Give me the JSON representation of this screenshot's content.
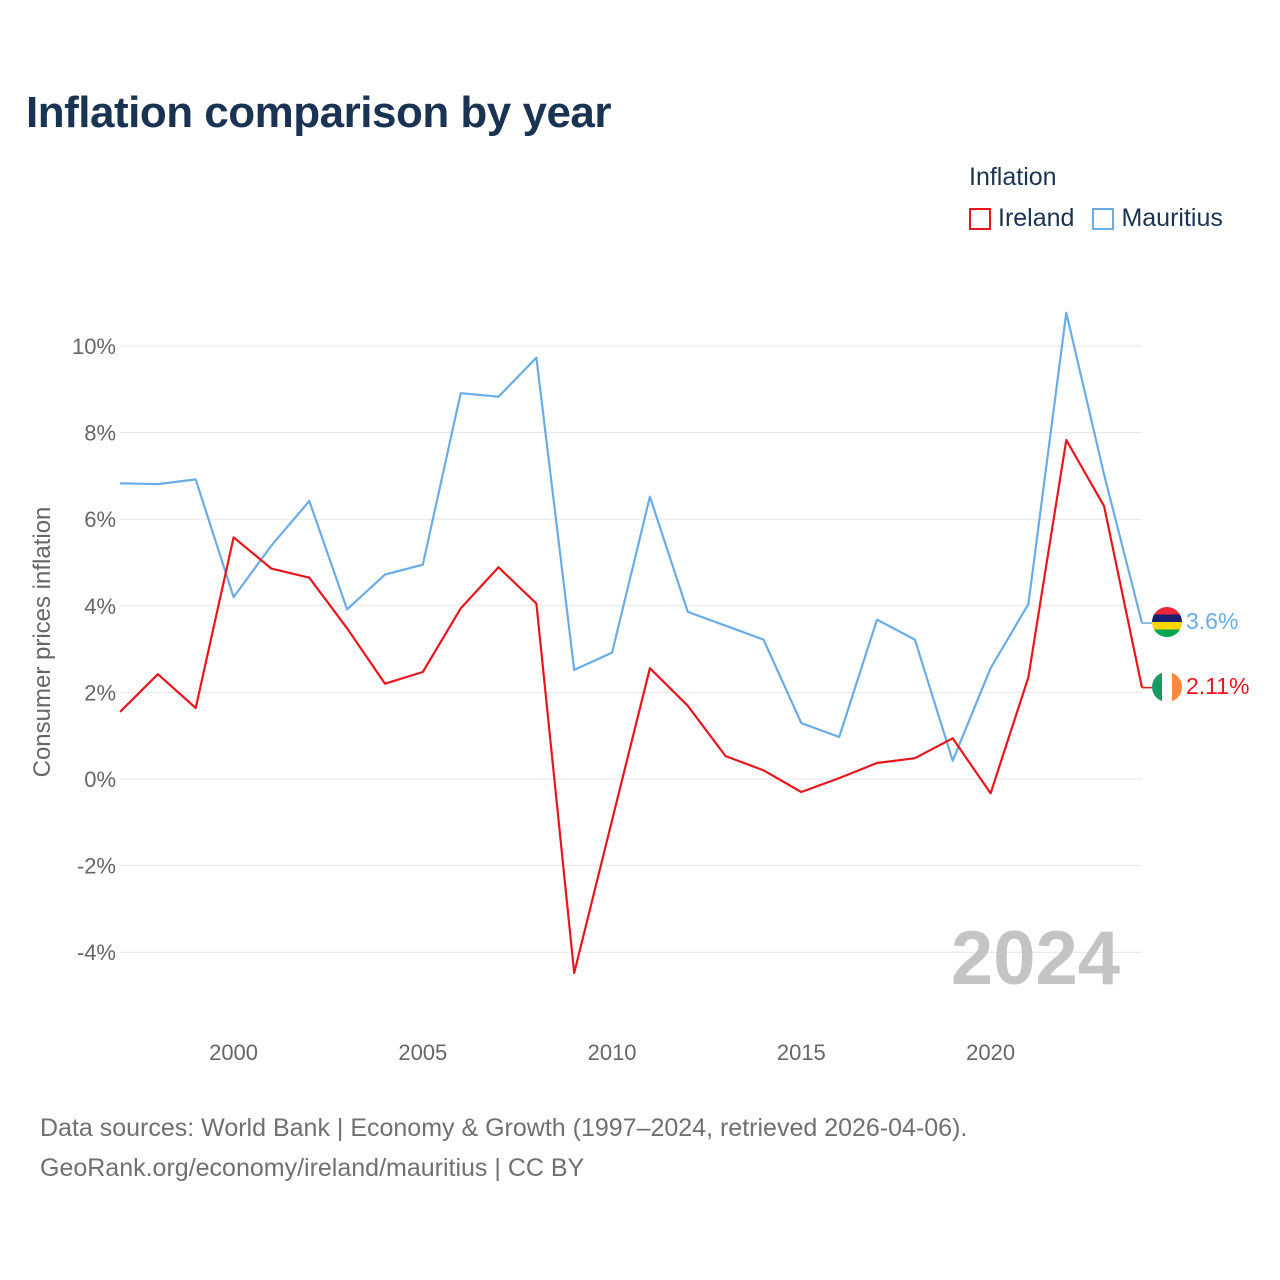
{
  "title": "Inflation comparison by year",
  "legend": {
    "title": "Inflation",
    "items": [
      {
        "name": "Ireland",
        "color": "#e8161c"
      },
      {
        "name": "Mauritius",
        "color": "#6aace6"
      }
    ]
  },
  "year_watermark": "2024",
  "end_labels": {
    "ireland": "2.11%",
    "mauritius": "3.6%"
  },
  "footer": {
    "line1": "Data sources: World Bank | Economy & Growth (1997–2024, retrieved 2026-04-06).",
    "line2": "GeoRank.org/economy/ireland/mauritius | CC BY"
  },
  "chart_data": {
    "type": "line",
    "title": "Inflation comparison by year",
    "xlabel": "",
    "ylabel": "Consumer prices inflation",
    "xlim": [
      1997,
      2024
    ],
    "ylim": [
      -5,
      11
    ],
    "x_ticks": [
      2000,
      2005,
      2010,
      2015,
      2020
    ],
    "x_tick_labels": [
      "2000",
      "2005",
      "2010",
      "2015",
      "2020"
    ],
    "y_ticks": [
      -4,
      -2,
      0,
      2,
      4,
      6,
      8,
      10
    ],
    "y_tick_labels": [
      "-4%",
      "-2%",
      "0%",
      "2%",
      "4%",
      "6%",
      "8%",
      "10%"
    ],
    "grid": true,
    "x": [
      1997,
      1998,
      1999,
      2000,
      2001,
      2002,
      2003,
      2004,
      2005,
      2006,
      2007,
      2008,
      2009,
      2010,
      2011,
      2012,
      2013,
      2014,
      2015,
      2016,
      2017,
      2018,
      2019,
      2020,
      2021,
      2022,
      2023,
      2024
    ],
    "series": [
      {
        "name": "Ireland",
        "color": "#e8161c",
        "values": [
          1.55,
          2.42,
          1.64,
          5.58,
          4.86,
          4.65,
          3.48,
          2.2,
          2.47,
          3.94,
          4.89,
          4.05,
          -4.48,
          -0.95,
          2.56,
          1.69,
          0.53,
          0.2,
          -0.3,
          0.02,
          0.37,
          0.48,
          0.94,
          -0.33,
          2.35,
          7.83,
          6.3,
          2.11
        ]
      },
      {
        "name": "Mauritius",
        "color": "#6aace6",
        "values": [
          6.83,
          6.81,
          6.92,
          4.2,
          5.39,
          6.42,
          3.92,
          4.72,
          4.95,
          8.91,
          8.83,
          9.73,
          2.52,
          2.92,
          6.52,
          3.86,
          3.54,
          3.22,
          1.29,
          0.97,
          3.68,
          3.22,
          0.42,
          2.56,
          4.04,
          10.77,
          7.03,
          3.6
        ]
      }
    ]
  }
}
